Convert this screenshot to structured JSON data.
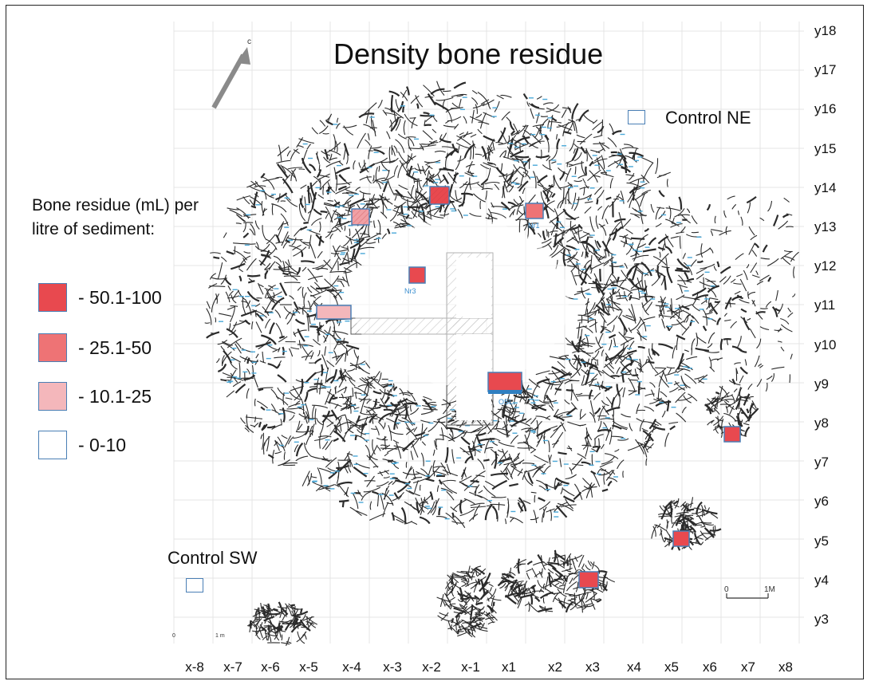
{
  "title": "Density bone residue",
  "legend": {
    "title": "Bone residue (mL) per litre of sediment:",
    "items": [
      {
        "label": "-  50.1-100",
        "color": "#e8494f"
      },
      {
        "label": "-  25.1-50",
        "color": "#ee7375"
      },
      {
        "label": "-  10.1-25",
        "color": "#f4b7bb"
      },
      {
        "label": "-  0-10",
        "color": "#ffffff"
      }
    ]
  },
  "controls": {
    "ne_label": "Control NE",
    "sw_label": "Control SW"
  },
  "north_arrow": {
    "label": "c"
  },
  "grid": {
    "y_labels": [
      "y18",
      "y17",
      "y16",
      "y15",
      "y14",
      "y13",
      "y12",
      "y11",
      "y10",
      "y9",
      "y8",
      "y7",
      "y6",
      "y5",
      "y4",
      "y3"
    ],
    "x_labels": [
      "x-8",
      "x-7",
      "x-6",
      "x-5",
      "x-4",
      "x-3",
      "x-2",
      "x-1",
      "x1",
      "x2",
      "x3",
      "x4",
      "x5",
      "x6",
      "x7",
      "x8"
    ]
  },
  "scale_bars": [
    {
      "start": "0",
      "end": "1M"
    },
    {
      "start": "0",
      "end": "1 m"
    }
  ],
  "sample_labels": [
    "Nr1",
    "Nr3",
    "OSL"
  ],
  "colors": {
    "high": "#e8494f",
    "mid": "#ee7375",
    "low": "#f4b7bb",
    "box_border": "#4a7fb5",
    "bone_line": "#2b2b2b",
    "bone_tag": "#4aa8d8"
  }
}
